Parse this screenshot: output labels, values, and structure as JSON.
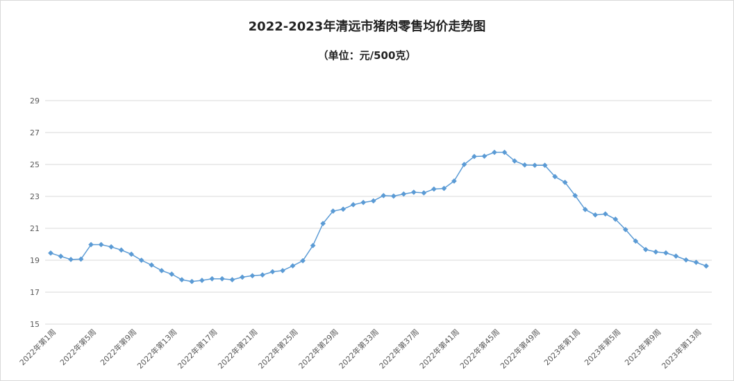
{
  "chart_data": {
    "type": "line",
    "title": "2022-2023年清远市猪肉零售均价走势图",
    "subtitle": "（单位：元/500克）",
    "xlabel": "",
    "ylabel": "",
    "ylim": [
      15,
      29
    ],
    "yticks": [
      15,
      17,
      19,
      21,
      23,
      25,
      27,
      29
    ],
    "grid": true,
    "legend": "none",
    "line_color": "#5b9bd5",
    "grid_color": "#d9d9d9",
    "x_tick_labels": [
      "2022年第1周",
      "2022年第5周",
      "2022年第9周",
      "2022年第13周",
      "2022年第17周",
      "2022年第21周",
      "2022年第25周",
      "2022年第29周",
      "2022年第33周",
      "2022年第37周",
      "2022年第41周",
      "2022年第45周",
      "2022年第49周",
      "2023年第1周",
      "2023年第5周",
      "2023年第9周",
      "2023年第13周"
    ],
    "series": [
      {
        "values": [
          19.45,
          19.25,
          19.05,
          19.07,
          19.98,
          19.98,
          19.84,
          19.64,
          19.38,
          19.0,
          18.7,
          18.35,
          18.13,
          17.78,
          17.67,
          17.74,
          17.84,
          17.84,
          17.78,
          17.94,
          18.03,
          18.08,
          18.28,
          18.35,
          18.65,
          18.97,
          19.92,
          21.3,
          22.08,
          22.2,
          22.48,
          22.62,
          22.72,
          23.05,
          23.02,
          23.15,
          23.26,
          23.22,
          23.46,
          23.5,
          23.96,
          25.0,
          25.5,
          25.52,
          25.76,
          25.76,
          25.22,
          24.97,
          24.95,
          24.95,
          24.24,
          23.88,
          23.05,
          22.18,
          21.84,
          21.9,
          21.57,
          20.92,
          20.2,
          19.67,
          19.52,
          19.46,
          19.26,
          19.02,
          18.87,
          18.64
        ]
      }
    ]
  }
}
